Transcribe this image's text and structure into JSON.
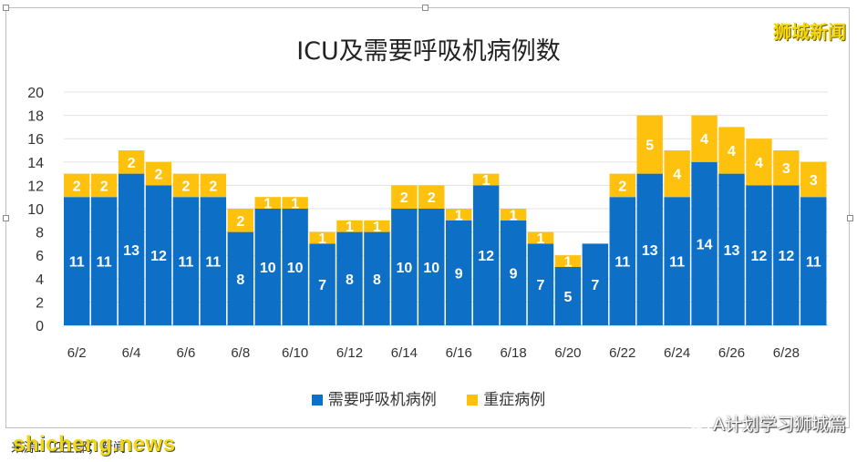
{
  "chart_data": {
    "type": "bar",
    "stacked": true,
    "title": "ICU及需要呼吸机病例数",
    "categories": [
      "6/2",
      "6/3",
      "6/4",
      "6/5",
      "6/6",
      "6/7",
      "6/8",
      "6/9",
      "6/10",
      "6/11",
      "6/12",
      "6/13",
      "6/14",
      "6/15",
      "6/16",
      "6/17",
      "6/18",
      "6/19",
      "6/20",
      "6/21",
      "6/22",
      "6/23",
      "6/24",
      "6/25",
      "6/26",
      "6/27",
      "6/28",
      "6/29"
    ],
    "x_tick_labels": [
      "6/2",
      "6/4",
      "6/6",
      "6/8",
      "6/10",
      "6/12",
      "6/14",
      "6/16",
      "6/18",
      "6/20",
      "6/22",
      "6/24",
      "6/26",
      "6/28"
    ],
    "series": [
      {
        "name": "需要呼吸机病例",
        "color": "#0d6fc6",
        "values": [
          11,
          11,
          13,
          12,
          11,
          11,
          8,
          10,
          10,
          7,
          8,
          8,
          10,
          10,
          9,
          12,
          9,
          7,
          5,
          7,
          11,
          13,
          11,
          14,
          13,
          12,
          12,
          11
        ]
      },
      {
        "name": "重症病例",
        "color": "#fdc10e",
        "values": [
          2,
          2,
          2,
          2,
          2,
          2,
          2,
          1,
          1,
          1,
          1,
          1,
          2,
          2,
          1,
          1,
          1,
          1,
          1,
          0,
          2,
          5,
          4,
          4,
          4,
          4,
          3,
          3
        ]
      }
    ],
    "ylim": [
      0,
      20
    ],
    "yticks": [
      0,
      2,
      4,
      6,
      8,
      10,
      12,
      14,
      16,
      18,
      20
    ],
    "grid": true,
    "legend_position": "bottom"
  },
  "watermarks": {
    "top_right": "狮城新闻",
    "bottom_left": "shicheng.news",
    "bottom_right": "A计划学习狮城篇"
  },
  "source_note": "来源：卫生部；新闻"
}
